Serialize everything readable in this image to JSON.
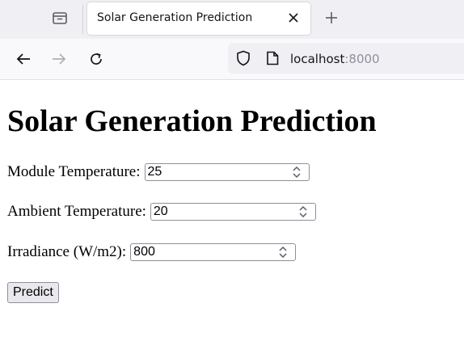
{
  "browser": {
    "tab": {
      "title": "Solar Generation Prediction"
    },
    "url": {
      "host": "localhost",
      "port": ":8000"
    }
  },
  "page": {
    "heading": "Solar Generation Prediction",
    "fields": [
      {
        "label": "Module Temperature:",
        "value": "25"
      },
      {
        "label": "Ambient Temperature:",
        "value": "20"
      },
      {
        "label": "Irradiance (W/m2):",
        "value": "800"
      }
    ],
    "predict_label": "Predict"
  },
  "icons": {
    "tab_list": "tab-list-icon",
    "close": "close-icon",
    "new_tab": "plus-icon",
    "back": "back-arrow-icon",
    "forward": "forward-arrow-icon",
    "reload": "reload-icon",
    "shield": "shield-icon",
    "page": "page-icon"
  }
}
